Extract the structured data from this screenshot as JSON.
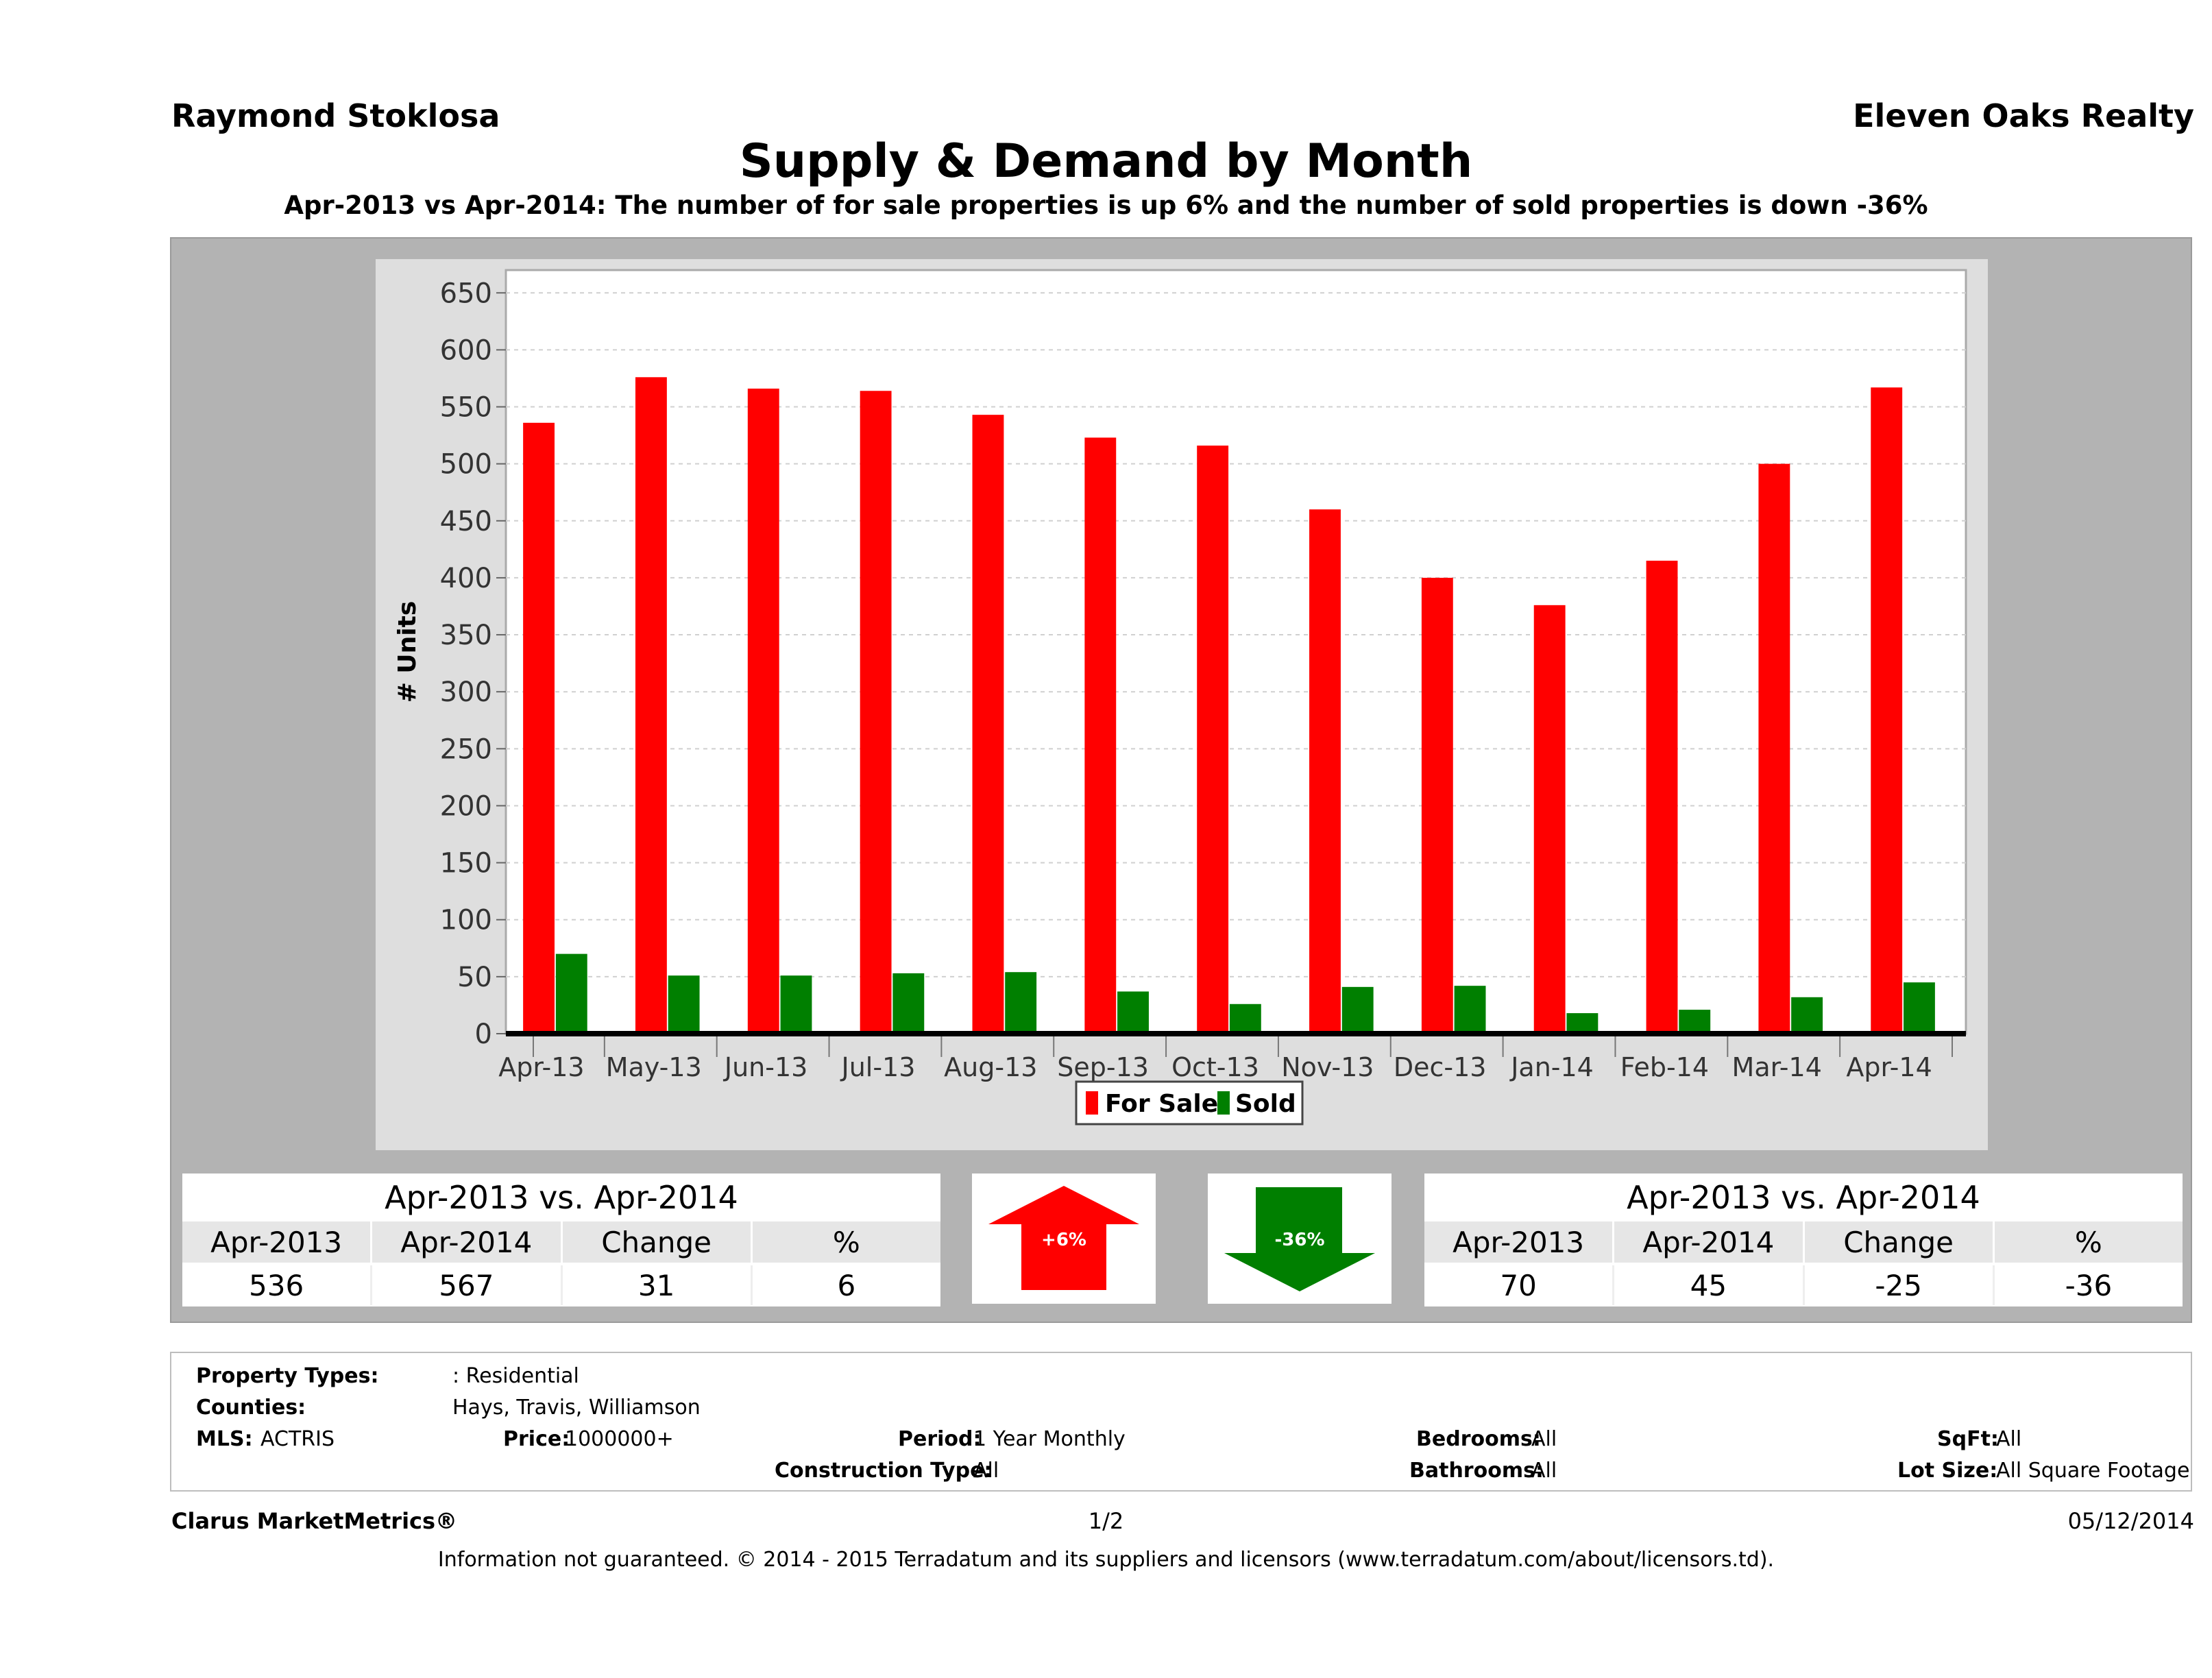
{
  "header": {
    "agent_name": "Raymond Stoklosa",
    "brokerage": "Eleven Oaks Realty",
    "title": "Supply & Demand by Month",
    "subtitle": "Apr-2013 vs Apr-2014: The number of for sale properties is up 6% and the number of sold properties is down -36%"
  },
  "chart_data": {
    "type": "bar",
    "title": "Supply & Demand by Month",
    "xlabel": "",
    "ylabel": "# Units",
    "ylim": [
      0,
      650
    ],
    "yticks": [
      0,
      50,
      100,
      150,
      200,
      250,
      300,
      350,
      400,
      450,
      500,
      550,
      600,
      650
    ],
    "grid": true,
    "legend_position": "bottom-center",
    "categories": [
      "Apr-13",
      "May-13",
      "Jun-13",
      "Jul-13",
      "Aug-13",
      "Sep-13",
      "Oct-13",
      "Nov-13",
      "Dec-13",
      "Jan-14",
      "Feb-14",
      "Mar-14",
      "Apr-14"
    ],
    "series": [
      {
        "name": "For Sale",
        "color": "#ff0000",
        "values": [
          536,
          576,
          566,
          564,
          543,
          523,
          516,
          460,
          400,
          376,
          415,
          500,
          567
        ]
      },
      {
        "name": "Sold",
        "color": "#007f00",
        "values": [
          70,
          51,
          51,
          53,
          54,
          37,
          26,
          41,
          42,
          18,
          21,
          32,
          45
        ]
      }
    ]
  },
  "for_sale_summary": {
    "heading": "Apr-2013 vs. Apr-2014",
    "columns": [
      "Apr-2013",
      "Apr-2014",
      "Change",
      "%"
    ],
    "values": [
      "536",
      "567",
      "31",
      "6"
    ],
    "badge": "+6%",
    "badge_color": "#ff0000"
  },
  "sold_summary": {
    "heading": "Apr-2013 vs. Apr-2014",
    "columns": [
      "Apr-2013",
      "Apr-2014",
      "Change",
      "%"
    ],
    "values": [
      "70",
      "45",
      "-25",
      "-36"
    ],
    "badge": "-36%",
    "badge_color": "#007f00"
  },
  "filters": {
    "property_types_label": "Property Types:",
    "property_types_value": ": Residential",
    "counties_label": "Counties:",
    "counties_value": "Hays, Travis, Williamson",
    "mls_label": "MLS:",
    "mls_value": "ACTRIS",
    "price_label": "Price:",
    "price_value": "1000000+",
    "period_label": "Period:",
    "period_value": "1 Year Monthly",
    "construction_label": "Construction Type:",
    "construction_value": "All",
    "bedrooms_label": "Bedrooms:",
    "bedrooms_value": "All",
    "bathrooms_label": "Bathrooms:",
    "bathrooms_value": "All",
    "sqft_label": "SqFt:",
    "sqft_value": "All",
    "lot_label": "Lot Size:",
    "lot_value": "All Square Footage"
  },
  "footer": {
    "brand": "Clarus MarketMetrics®",
    "page": "1/2",
    "date": "05/12/2014",
    "disclaimer": "Information not guaranteed. © 2014 - 2015 Terradatum and its suppliers and licensors (www.terradatum.com/about/licensors.td)."
  }
}
